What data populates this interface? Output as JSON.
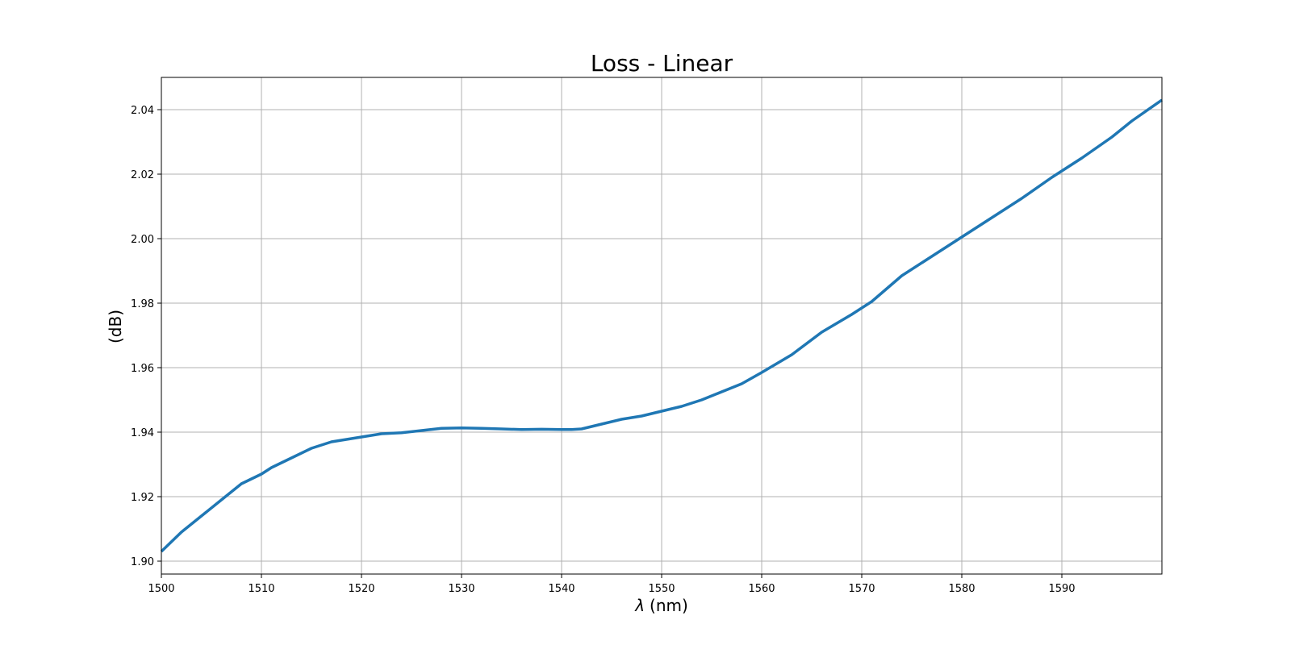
{
  "chart_data": {
    "type": "line",
    "title": "Loss - Linear",
    "xlabel_symbol": "λ",
    "xlabel_unit": "(nm)",
    "ylabel": "(dB)",
    "xlim": [
      1500,
      1600
    ],
    "ylim": [
      1.896,
      2.05
    ],
    "xticks": [
      1500,
      1510,
      1520,
      1530,
      1540,
      1550,
      1560,
      1570,
      1580,
      1590
    ],
    "xtick_labels": [
      "1500",
      "1510",
      "1520",
      "1530",
      "1540",
      "1550",
      "1560",
      "1570",
      "1580",
      "1590"
    ],
    "yticks": [
      1.9,
      1.92,
      1.94,
      1.96,
      1.98,
      2.0,
      2.02,
      2.04
    ],
    "ytick_labels": [
      "1.90",
      "1.92",
      "1.94",
      "1.96",
      "1.98",
      "2.00",
      "2.02",
      "2.04"
    ],
    "grid": true,
    "series": [
      {
        "color": "#1f77b4",
        "x": [
          1500,
          1502,
          1504,
          1506,
          1508,
          1510,
          1511,
          1513,
          1515,
          1517,
          1519,
          1520,
          1522,
          1524,
          1526,
          1528,
          1530,
          1532,
          1534,
          1536,
          1538,
          1540,
          1541,
          1542,
          1544,
          1546,
          1548,
          1550,
          1552,
          1554,
          1556,
          1558,
          1560,
          1563,
          1566,
          1569,
          1571,
          1574,
          1577,
          1580,
          1583,
          1586,
          1589,
          1592,
          1595,
          1597,
          1600
        ],
        "y": [
          1.903,
          1.909,
          1.914,
          1.919,
          1.924,
          1.927,
          1.929,
          1.932,
          1.935,
          1.937,
          1.938,
          1.9385,
          1.9395,
          1.9398,
          1.9405,
          1.9412,
          1.9413,
          1.9412,
          1.941,
          1.9408,
          1.9409,
          1.9408,
          1.9408,
          1.941,
          1.9425,
          1.944,
          1.945,
          1.9465,
          1.948,
          1.95,
          1.9525,
          1.955,
          1.9585,
          1.964,
          1.971,
          1.9765,
          1.9805,
          1.9885,
          1.9945,
          2.0005,
          2.0065,
          2.0125,
          2.019,
          2.025,
          2.0315,
          2.0365,
          2.043
        ]
      }
    ]
  }
}
